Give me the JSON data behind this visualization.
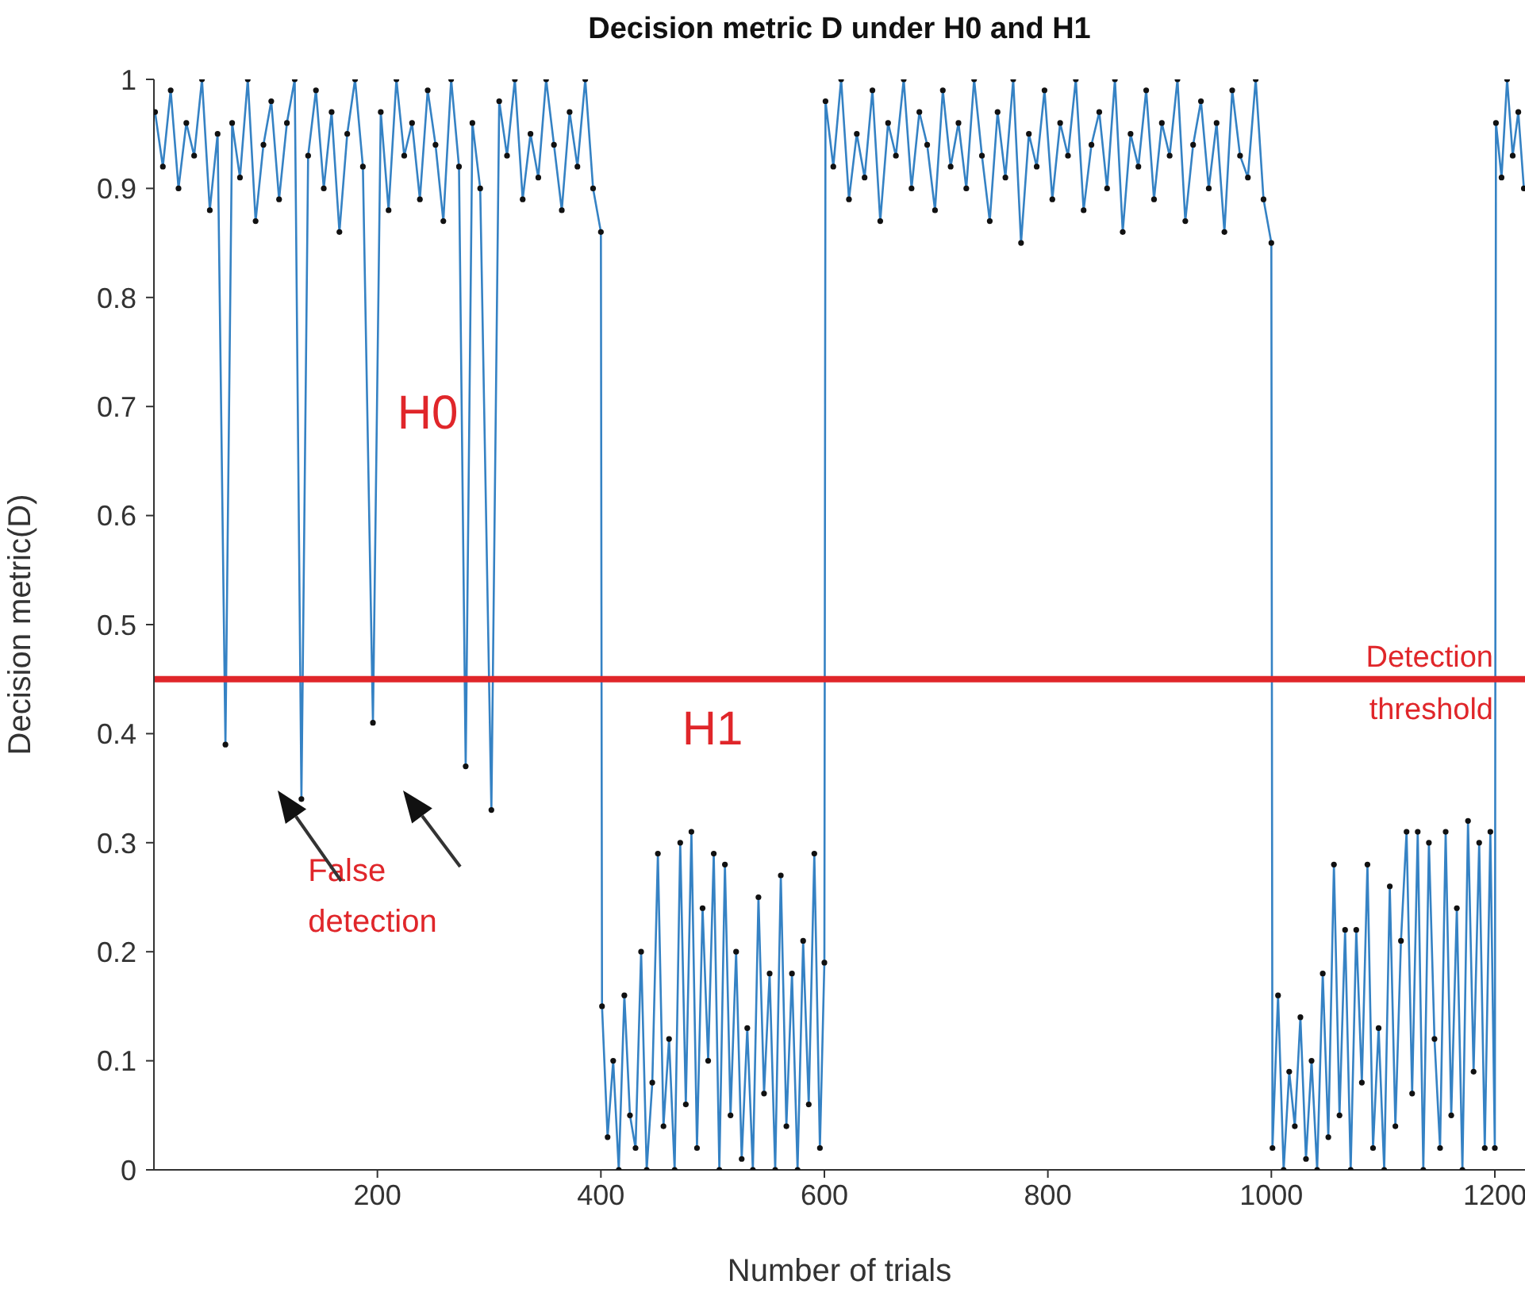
{
  "chart_data": {
    "type": "line",
    "title": "Decision metric D under H0 and H1",
    "xlabel": "Number of trials",
    "ylabel": "Decision metric(D)",
    "xlim": [
      0,
      1227
    ],
    "xticks": [
      200,
      400,
      600,
      800,
      1000,
      1200
    ],
    "ylim": [
      0,
      1
    ],
    "yticks": [
      0,
      0.1,
      0.2,
      0.3,
      0.4,
      0.5,
      0.6,
      0.7,
      0.8,
      0.9,
      1
    ],
    "marker": "circle",
    "ref_lines": [
      {
        "axis": "y",
        "value": 0.45,
        "label": "Detection threshold",
        "color": "#e0262a"
      }
    ],
    "annotations": [
      "H0",
      "H1",
      "False detection"
    ],
    "series": [
      {
        "color": "#3582c4",
        "x": [
          1,
          8,
          15,
          22,
          29,
          36,
          43,
          50,
          57,
          64,
          70,
          77,
          84,
          91,
          98,
          105,
          112,
          119,
          126,
          132,
          138,
          145,
          152,
          159,
          166,
          173,
          180,
          187,
          196,
          203,
          210,
          217,
          224,
          231,
          238,
          245,
          252,
          259,
          266,
          273,
          279,
          285,
          292,
          302,
          309,
          316,
          323,
          330,
          337,
          344,
          351,
          358,
          365,
          372,
          379,
          386,
          393,
          400,
          401,
          406,
          411,
          416,
          421,
          426,
          431,
          436,
          441,
          446,
          451,
          456,
          461,
          466,
          471,
          476,
          481,
          486,
          491,
          496,
          501,
          506,
          511,
          516,
          521,
          526,
          531,
          536,
          541,
          546,
          551,
          556,
          561,
          566,
          571,
          576,
          581,
          586,
          591,
          596,
          600,
          601,
          608,
          615,
          622,
          629,
          636,
          643,
          650,
          657,
          664,
          671,
          678,
          685,
          692,
          699,
          706,
          713,
          720,
          727,
          734,
          741,
          748,
          755,
          762,
          769,
          776,
          783,
          790,
          797,
          804,
          811,
          818,
          825,
          832,
          839,
          846,
          853,
          860,
          867,
          874,
          881,
          888,
          895,
          902,
          909,
          916,
          923,
          930,
          937,
          944,
          951,
          958,
          965,
          972,
          979,
          986,
          993,
          1000,
          1001,
          1006,
          1011,
          1016,
          1021,
          1026,
          1031,
          1036,
          1041,
          1046,
          1051,
          1056,
          1061,
          1066,
          1071,
          1076,
          1081,
          1086,
          1091,
          1096,
          1101,
          1106,
          1111,
          1116,
          1121,
          1126,
          1131,
          1136,
          1141,
          1146,
          1151,
          1156,
          1161,
          1166,
          1171,
          1176,
          1181,
          1186,
          1191,
          1196,
          1200,
          1201,
          1206,
          1211,
          1216,
          1221,
          1226
        ],
        "values": [
          0.97,
          0.92,
          0.99,
          0.9,
          0.96,
          0.93,
          1,
          0.88,
          0.95,
          0.39,
          0.96,
          0.91,
          1,
          0.87,
          0.94,
          0.98,
          0.89,
          0.96,
          1,
          0.34,
          0.93,
          0.99,
          0.9,
          0.97,
          0.86,
          0.95,
          1,
          0.92,
          0.41,
          0.97,
          0.88,
          1,
          0.93,
          0.96,
          0.89,
          0.99,
          0.94,
          0.87,
          1,
          0.92,
          0.37,
          0.96,
          0.9,
          0.33,
          0.98,
          0.93,
          1,
          0.89,
          0.95,
          0.91,
          1,
          0.94,
          0.88,
          0.97,
          0.92,
          1,
          0.9,
          0.86,
          0.15,
          0.03,
          0.1,
          0,
          0.16,
          0.05,
          0.02,
          0.2,
          0,
          0.08,
          0.29,
          0.04,
          0.12,
          0,
          0.3,
          0.06,
          0.31,
          0.02,
          0.24,
          0.1,
          0.29,
          0,
          0.28,
          0.05,
          0.2,
          0.01,
          0.13,
          0,
          0.25,
          0.07,
          0.18,
          0,
          0.27,
          0.04,
          0.18,
          0,
          0.21,
          0.06,
          0.29,
          0.02,
          0.19,
          0.98,
          0.92,
          1,
          0.89,
          0.95,
          0.91,
          0.99,
          0.87,
          0.96,
          0.93,
          1,
          0.9,
          0.97,
          0.94,
          0.88,
          0.99,
          0.92,
          0.96,
          0.9,
          1,
          0.93,
          0.87,
          0.97,
          0.91,
          1,
          0.85,
          0.95,
          0.92,
          0.99,
          0.89,
          0.96,
          0.93,
          1,
          0.88,
          0.94,
          0.97,
          0.9,
          1,
          0.86,
          0.95,
          0.92,
          0.99,
          0.89,
          0.96,
          0.93,
          1,
          0.87,
          0.94,
          0.98,
          0.9,
          0.96,
          0.86,
          0.99,
          0.93,
          0.91,
          1,
          0.89,
          0.85,
          0.02,
          0.16,
          0,
          0.09,
          0.04,
          0.14,
          0.01,
          0.1,
          0,
          0.18,
          0.03,
          0.28,
          0.05,
          0.22,
          0,
          0.22,
          0.08,
          0.28,
          0.02,
          0.13,
          0,
          0.26,
          0.04,
          0.21,
          0.31,
          0.07,
          0.31,
          0,
          0.3,
          0.12,
          0.02,
          0.31,
          0.05,
          0.24,
          0,
          0.32,
          0.09,
          0.3,
          0.02,
          0.31,
          0.02,
          0.96,
          0.91,
          1,
          0.93,
          0.97,
          0.9
        ]
      }
    ]
  }
}
